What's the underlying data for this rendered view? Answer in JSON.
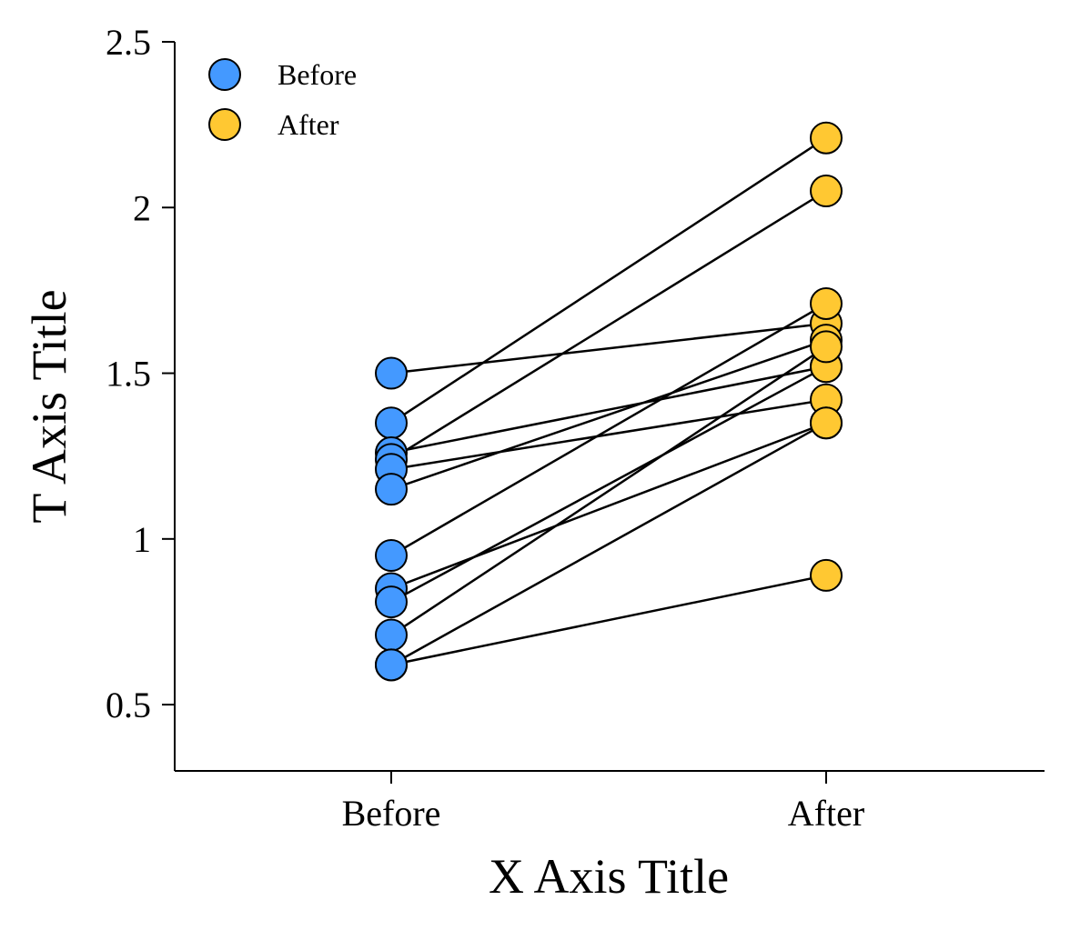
{
  "chart_data": {
    "type": "scatter",
    "subtype": "paired-points",
    "title": "",
    "xlabel": "X Axis Title",
    "ylabel": "T Axis Title",
    "categories": [
      "Before",
      "After"
    ],
    "ylim": [
      0.3,
      2.5
    ],
    "yticks": [
      0.5,
      1,
      1.5,
      2,
      2.5
    ],
    "ytick_labels": [
      "0.5",
      "1",
      "1.5",
      "2",
      "2.5"
    ],
    "grid": false,
    "legend": {
      "position": "top-left",
      "entries": [
        {
          "label": "Before",
          "color": "#4499ff"
        },
        {
          "label": "After",
          "color": "#ffc832"
        }
      ]
    },
    "series": [
      {
        "name": "Before",
        "color": "#4499ff",
        "values": [
          1.5,
          1.35,
          1.26,
          1.24,
          1.21,
          1.15,
          0.95,
          0.85,
          0.81,
          0.71,
          0.62,
          0.62
        ]
      },
      {
        "name": "After",
        "color": "#ffc832",
        "values": [
          1.65,
          2.21,
          1.52,
          2.05,
          1.42,
          1.6,
          1.71,
          1.35,
          1.52,
          1.58,
          1.35,
          0.89
        ]
      }
    ],
    "line_color": "#000000",
    "marker_edge_color": "#000000"
  }
}
